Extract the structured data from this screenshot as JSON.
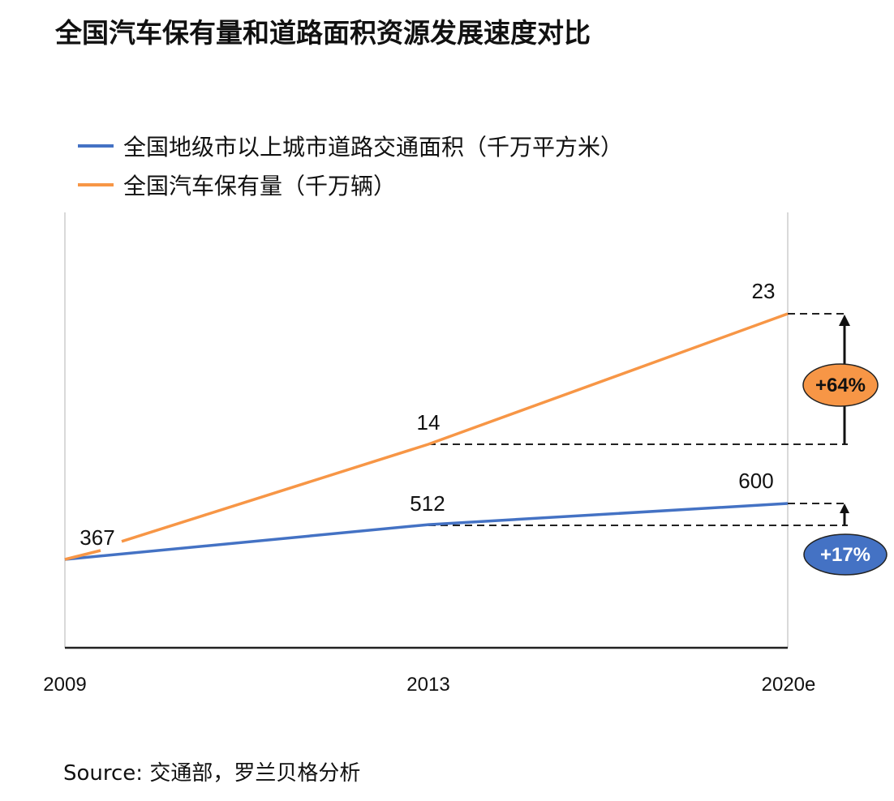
{
  "title": "全国汽车保有量和道路面积资源发展速度对比",
  "source": "Source: 交通部，罗兰贝格分析",
  "chart_data": {
    "type": "line",
    "title": "全国汽车保有量和道路面积资源发展速度对比",
    "xlabel": "",
    "ylabel": "",
    "categories": [
      "2009",
      "2013",
      "2020e"
    ],
    "grid": false,
    "legend_position": "top-left",
    "series": [
      {
        "name": "全国地级市以上城市道路交通面积（千万平方米）",
        "color": "#4472C4",
        "values": [
          367,
          512,
          600
        ],
        "data_labels": [
          "367",
          "512",
          "600"
        ],
        "growth_label": "+17%",
        "growth_color": "#4472C4",
        "growth_text_color": "#ffffff"
      },
      {
        "name": "全国汽车保有量（千万辆）",
        "color": "#F79646",
        "values": [
          null,
          14,
          23
        ],
        "data_labels": [
          "",
          "14",
          "23"
        ],
        "growth_label": "+64%",
        "growth_color": "#F79646",
        "growth_text_color": "#111111"
      }
    ]
  }
}
